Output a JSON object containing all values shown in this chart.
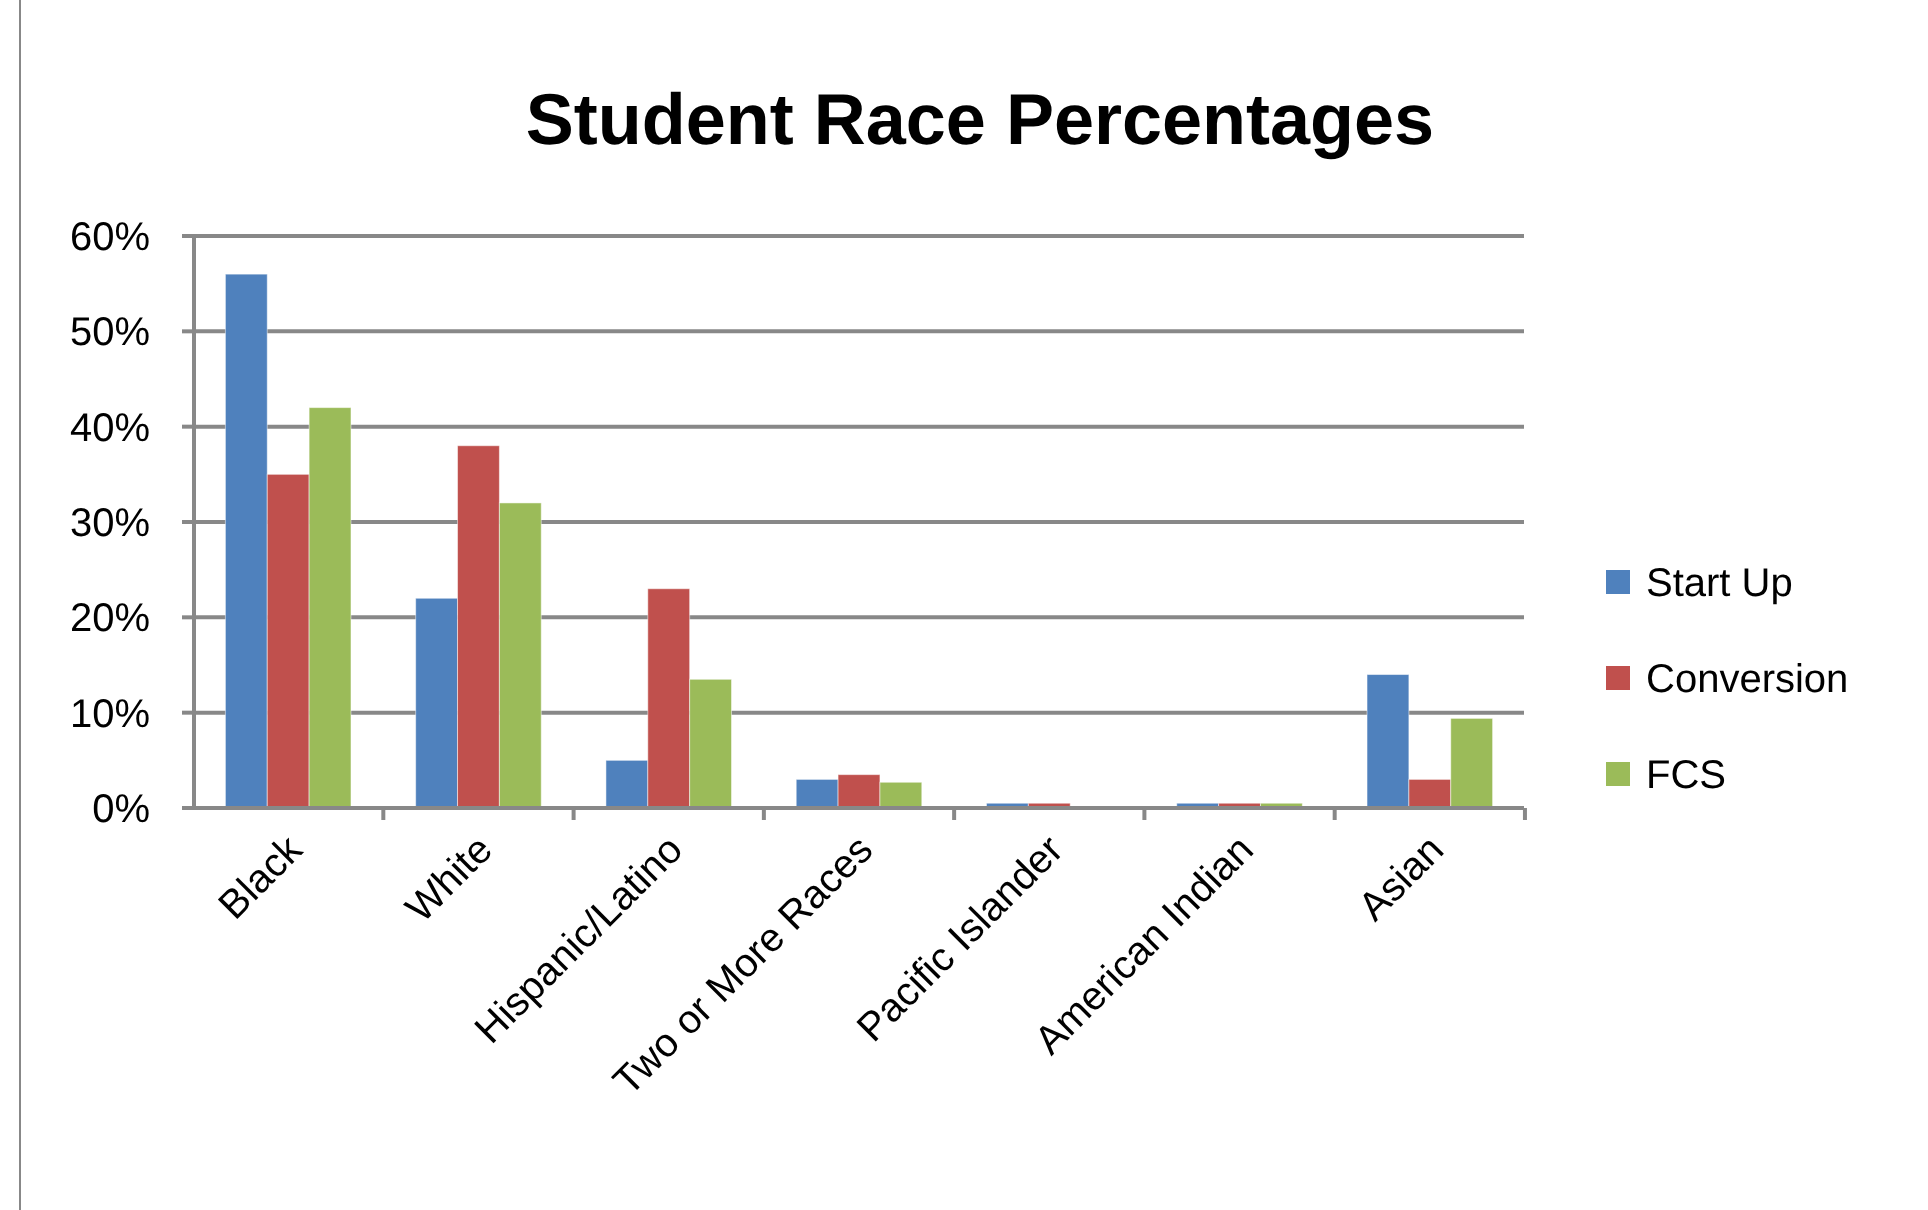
{
  "chart_data": {
    "type": "bar",
    "title": "Student Race Percentages",
    "categories": [
      "Black",
      "White",
      "Hispanic/Latino",
      "Two or More Races",
      "Pacific Islander",
      "American Indian",
      "Asian"
    ],
    "series": [
      {
        "name": "Start Up",
        "color": "#4f81bd",
        "values": [
          56,
          22,
          5,
          3,
          0.5,
          0.5,
          14
        ]
      },
      {
        "name": "Conversion",
        "color": "#c0504d",
        "values": [
          35,
          38,
          23,
          3.5,
          0.5,
          0.5,
          3
        ]
      },
      {
        "name": "FCS",
        "color": "#9bbb59",
        "values": [
          42,
          32,
          13.5,
          2.7,
          0,
          0.5,
          9.4
        ]
      }
    ],
    "ylim": [
      0,
      60
    ],
    "yticks": [
      {
        "value": 0,
        "label": "0%"
      },
      {
        "value": 10,
        "label": "10%"
      },
      {
        "value": 20,
        "label": "20%"
      },
      {
        "value": 30,
        "label": "30%"
      },
      {
        "value": 40,
        "label": "40%"
      },
      {
        "value": 50,
        "label": "50%"
      },
      {
        "value": 60,
        "label": "60%"
      }
    ],
    "grid": "y",
    "legend": "right"
  }
}
